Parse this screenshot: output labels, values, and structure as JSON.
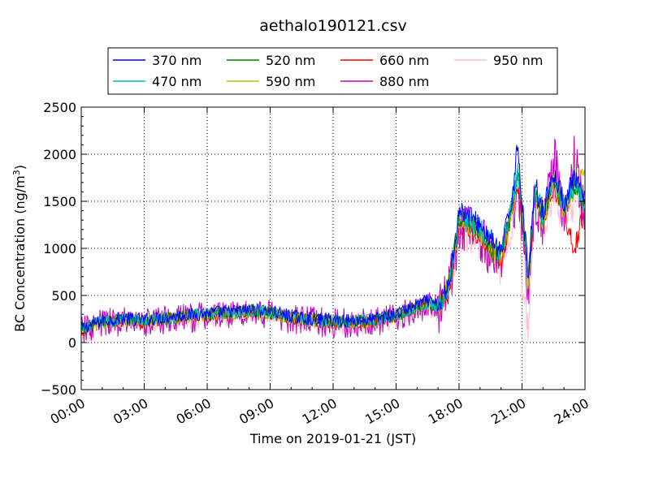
{
  "chart_data": {
    "type": "line",
    "title": "aethalo190121.csv",
    "xlabel": "Time on 2019-01-21 (JST)",
    "ylabel": "BC Concentration (ng/m³)",
    "ylabel_main": "BC Concentration (ng/m",
    "ylabel_sup": "3",
    "ylabel_end": ")",
    "x_unit": "hours since 2019-01-21 00:00 JST",
    "xlim": [
      0,
      24
    ],
    "ylim": [
      -500,
      2500
    ],
    "x_ticks": [
      0,
      3,
      6,
      9,
      12,
      15,
      18,
      21,
      24
    ],
    "x_tick_labels": [
      "00:00",
      "03:00",
      "06:00",
      "09:00",
      "12:00",
      "15:00",
      "18:00",
      "21:00",
      "24:00"
    ],
    "y_ticks": [
      -500,
      0,
      500,
      1000,
      1500,
      2000,
      2500
    ],
    "y_tick_labels": [
      "−500",
      "0",
      "500",
      "1000",
      "1500",
      "2000",
      "2500"
    ],
    "grid": true,
    "legend_position": "top-center",
    "series": [
      {
        "name": "370 nm",
        "color": "#0000ff",
        "x": [
          0,
          1,
          2,
          3,
          4,
          5,
          6,
          7,
          8,
          9,
          10,
          11,
          12,
          13,
          14,
          15,
          16,
          16.5,
          17,
          17.5,
          18,
          18.5,
          19,
          19.5,
          20,
          20.5,
          20.8,
          21,
          21.3,
          21.6,
          22,
          22.5,
          23,
          23.5,
          24
        ],
        "values": [
          150,
          230,
          260,
          240,
          270,
          290,
          310,
          330,
          350,
          330,
          280,
          250,
          240,
          230,
          250,
          300,
          400,
          450,
          380,
          600,
          1400,
          1350,
          1250,
          1100,
          950,
          1500,
          2130,
          1500,
          700,
          1700,
          1400,
          1800,
          1500,
          1750,
          1500
        ]
      },
      {
        "name": "470 nm",
        "color": "#00bfbf",
        "x": [
          0,
          1,
          2,
          3,
          4,
          5,
          6,
          7,
          8,
          9,
          10,
          11,
          12,
          13,
          14,
          15,
          16,
          16.5,
          17,
          17.5,
          18,
          18.5,
          19,
          19.5,
          20,
          20.5,
          20.8,
          21,
          21.3,
          21.6,
          22,
          22.5,
          23,
          23.5,
          24
        ],
        "values": [
          140,
          220,
          250,
          230,
          260,
          280,
          300,
          320,
          340,
          320,
          270,
          240,
          230,
          220,
          240,
          290,
          380,
          430,
          360,
          580,
          1350,
          1300,
          1200,
          1050,
          920,
          1450,
          1850,
          1450,
          650,
          1650,
          1350,
          1750,
          1450,
          1700,
          1450
        ]
      },
      {
        "name": "520 nm",
        "color": "#008000",
        "x": [
          0,
          1,
          2,
          3,
          4,
          5,
          6,
          7,
          8,
          9,
          10,
          11,
          12,
          13,
          14,
          15,
          16,
          16.5,
          17,
          17.5,
          18,
          18.5,
          19,
          19.5,
          20,
          20.5,
          20.8,
          21,
          21.3,
          21.6,
          22,
          22.5,
          23,
          23.5,
          24
        ],
        "values": [
          140,
          220,
          250,
          230,
          260,
          280,
          300,
          320,
          340,
          320,
          270,
          240,
          230,
          220,
          240,
          290,
          380,
          430,
          360,
          580,
          1300,
          1280,
          1180,
          1020,
          900,
          1400,
          1800,
          1400,
          640,
          1620,
          1330,
          1720,
          1420,
          1680,
          1420
        ]
      },
      {
        "name": "590 nm",
        "color": "#bfbf00",
        "x": [
          0,
          1,
          2,
          3,
          4,
          5,
          6,
          7,
          8,
          9,
          10,
          11,
          12,
          13,
          14,
          15,
          16,
          16.5,
          17,
          17.5,
          18,
          18.5,
          19,
          19.5,
          20,
          20.5,
          20.8,
          21,
          21.3,
          21.6,
          22,
          22.5,
          23,
          23.5,
          24
        ],
        "values": [
          130,
          210,
          240,
          220,
          250,
          270,
          290,
          310,
          330,
          310,
          260,
          230,
          220,
          210,
          230,
          280,
          370,
          420,
          350,
          560,
          1280,
          1250,
          1150,
          1000,
          880,
          1380,
          1750,
          1380,
          620,
          1600,
          1300,
          1700,
          1400,
          1650,
          1800
        ]
      },
      {
        "name": "660 nm",
        "color": "#ff0000",
        "x": [
          0,
          1,
          2,
          3,
          4,
          5,
          6,
          7,
          8,
          9,
          10,
          11,
          12,
          13,
          14,
          15,
          16,
          16.5,
          17,
          17.5,
          18,
          18.5,
          19,
          19.5,
          20,
          20.5,
          20.8,
          21,
          21.3,
          21.6,
          22,
          22.5,
          23,
          23.5,
          24
        ],
        "values": [
          130,
          210,
          240,
          220,
          250,
          270,
          290,
          310,
          330,
          310,
          260,
          230,
          220,
          210,
          230,
          280,
          370,
          420,
          350,
          560,
          1250,
          1230,
          1130,
          980,
          860,
          1350,
          1700,
          1350,
          600,
          1580,
          1280,
          1680,
          1380,
          1000,
          1450
        ]
      },
      {
        "name": "880 nm",
        "color": "#bf00bf",
        "x": [
          0,
          1,
          2,
          3,
          4,
          5,
          6,
          7,
          8,
          9,
          10,
          11,
          12,
          13,
          14,
          15,
          16,
          16.5,
          17,
          17.5,
          18,
          18.5,
          19,
          19.5,
          20,
          20.5,
          20.8,
          21,
          21.3,
          21.6,
          22,
          22.5,
          23,
          23.5,
          24
        ],
        "values": [
          120,
          200,
          230,
          210,
          240,
          260,
          280,
          300,
          320,
          300,
          250,
          220,
          210,
          200,
          220,
          270,
          360,
          410,
          340,
          540,
          1200,
          1200,
          1100,
          960,
          840,
          1300,
          1650,
          1300,
          580,
          1550,
          1250,
          2000,
          1350,
          2000,
          1300
        ]
      },
      {
        "name": "950 nm",
        "color": "#ffc0cb",
        "x": [
          0,
          1,
          2,
          3,
          4,
          5,
          6,
          7,
          8,
          9,
          10,
          11,
          12,
          13,
          14,
          15,
          16,
          16.5,
          17,
          17.5,
          18,
          18.5,
          19,
          19.5,
          20,
          20.5,
          20.8,
          21,
          21.3,
          21.6,
          22,
          22.5,
          23,
          23.5,
          24
        ],
        "values": [
          110,
          190,
          220,
          200,
          230,
          250,
          270,
          290,
          310,
          290,
          240,
          210,
          200,
          190,
          210,
          260,
          350,
          400,
          330,
          520,
          1150,
          1150,
          1050,
          930,
          800,
          1250,
          1600,
          600,
          200,
          1500,
          1200,
          1600,
          1300,
          1500,
          1250
        ]
      }
    ]
  }
}
